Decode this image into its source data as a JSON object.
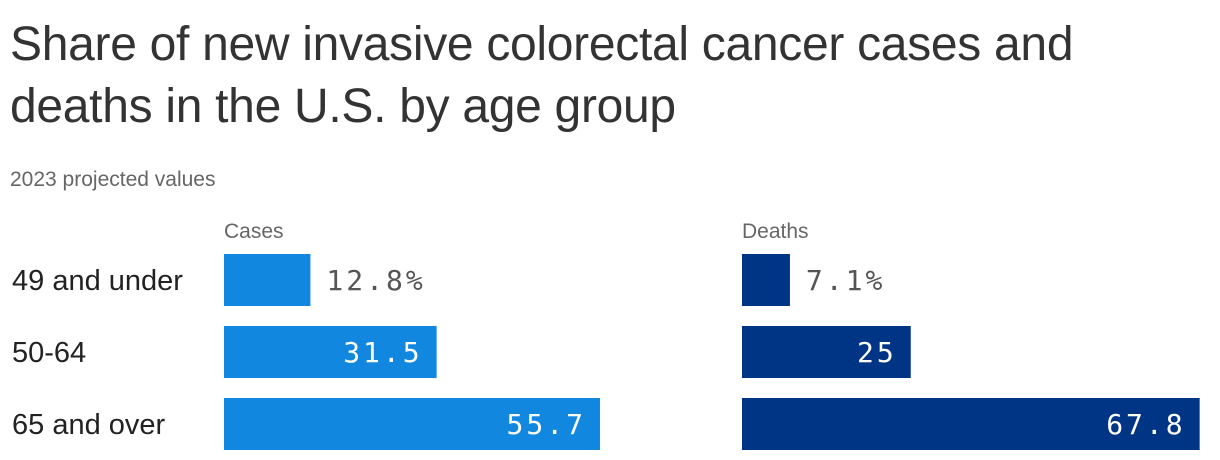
{
  "title": "Share of new invasive colorectal cancer cases and deaths in the U.S. by age group",
  "subtitle": "2023 projected values",
  "chart_data": {
    "type": "bar",
    "orientation": "horizontal",
    "categories": [
      "49 and under",
      "50-64",
      "65 and over"
    ],
    "xlim": [
      0,
      100
    ],
    "grid": false,
    "series": [
      {
        "name": "Cases",
        "values": [
          12.8,
          31.5,
          55.7
        ],
        "labels": [
          "12.8%",
          "31.5",
          "55.7"
        ],
        "color": "#1187e0"
      },
      {
        "name": "Deaths",
        "values": [
          7.1,
          25,
          67.8
        ],
        "labels": [
          "7.1%",
          "25",
          "67.8"
        ],
        "color": "#003585"
      }
    ]
  }
}
